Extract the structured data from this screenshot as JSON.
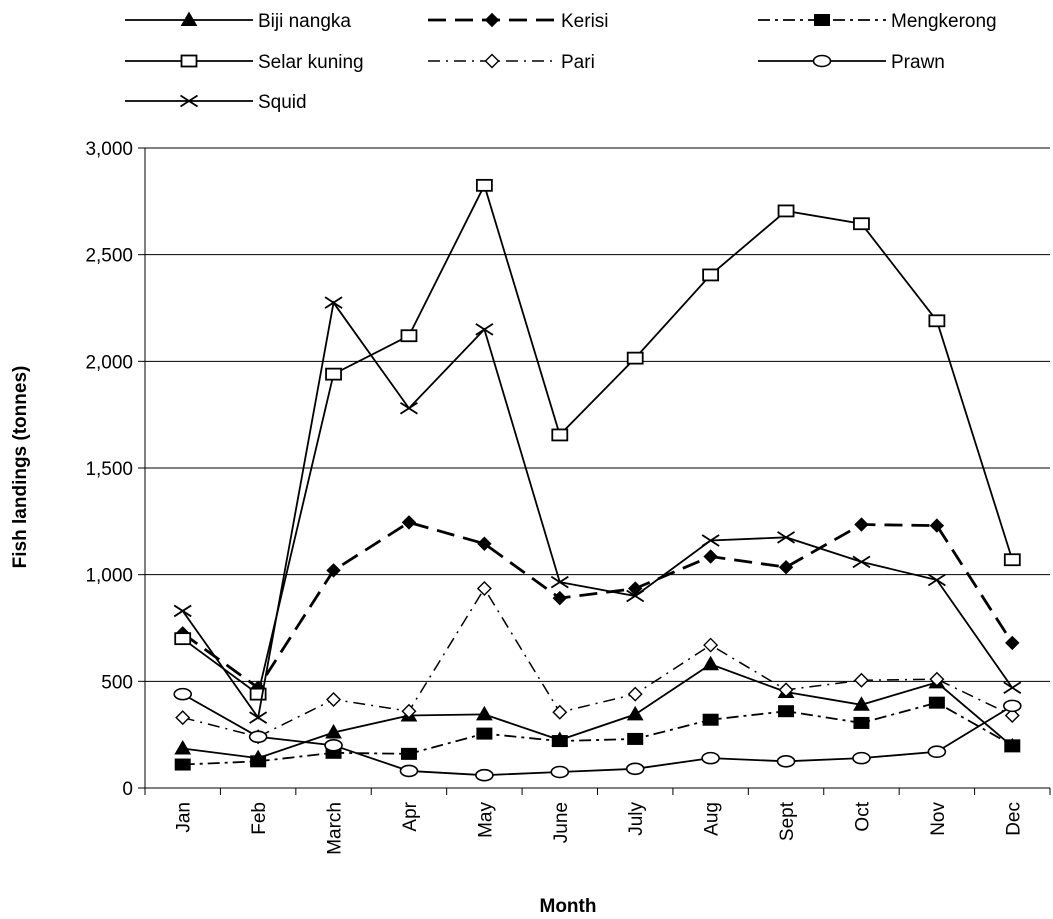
{
  "chart_data": {
    "type": "line",
    "title": "",
    "xlabel": "Month",
    "ylabel": "Fish landings (tonnes)",
    "ylim": [
      0,
      3000
    ],
    "yticks": [
      "0",
      "500",
      "1,000",
      "1,500",
      "2,000",
      "2,500",
      "3,000"
    ],
    "grid": "horizontal",
    "legend_position": "top",
    "categories": [
      "Jan",
      "Feb",
      "March",
      "Apr",
      "May",
      "June",
      "July",
      "Aug",
      "Sept",
      "Oct",
      "Nov",
      "Dec"
    ],
    "series": [
      {
        "name": "Biji nangka",
        "marker": "filled-triangle",
        "dash": "solid",
        "values": [
          185,
          140,
          260,
          340,
          345,
          225,
          345,
          580,
          450,
          390,
          495,
          195
        ]
      },
      {
        "name": "Kerisi",
        "marker": "filled-diamond",
        "dash": "long-dash",
        "values": [
          725,
          470,
          1020,
          1245,
          1145,
          890,
          935,
          1085,
          1035,
          1235,
          1230,
          680
        ]
      },
      {
        "name": "Mengkerong",
        "marker": "filled-square",
        "dash": "dash-dot",
        "values": [
          110,
          125,
          165,
          160,
          255,
          220,
          230,
          320,
          360,
          305,
          400,
          200
        ]
      },
      {
        "name": "Selar kuning",
        "marker": "open-square",
        "dash": "solid",
        "values": [
          700,
          440,
          1940,
          2120,
          2825,
          1655,
          2015,
          2405,
          2705,
          2645,
          2190,
          1070
        ]
      },
      {
        "name": "Pari",
        "marker": "open-diamond",
        "dash": "dash-dot-thin",
        "values": [
          330,
          240,
          415,
          360,
          935,
          355,
          440,
          670,
          460,
          505,
          510,
          340
        ]
      },
      {
        "name": "Prawn",
        "marker": "open-circle",
        "dash": "solid",
        "values": [
          440,
          240,
          200,
          80,
          60,
          75,
          90,
          140,
          125,
          140,
          170,
          385
        ]
      },
      {
        "name": "Squid",
        "marker": "x",
        "dash": "solid",
        "values": [
          830,
          330,
          2275,
          1780,
          2150,
          965,
          900,
          1160,
          1175,
          1060,
          975,
          470
        ]
      }
    ]
  }
}
